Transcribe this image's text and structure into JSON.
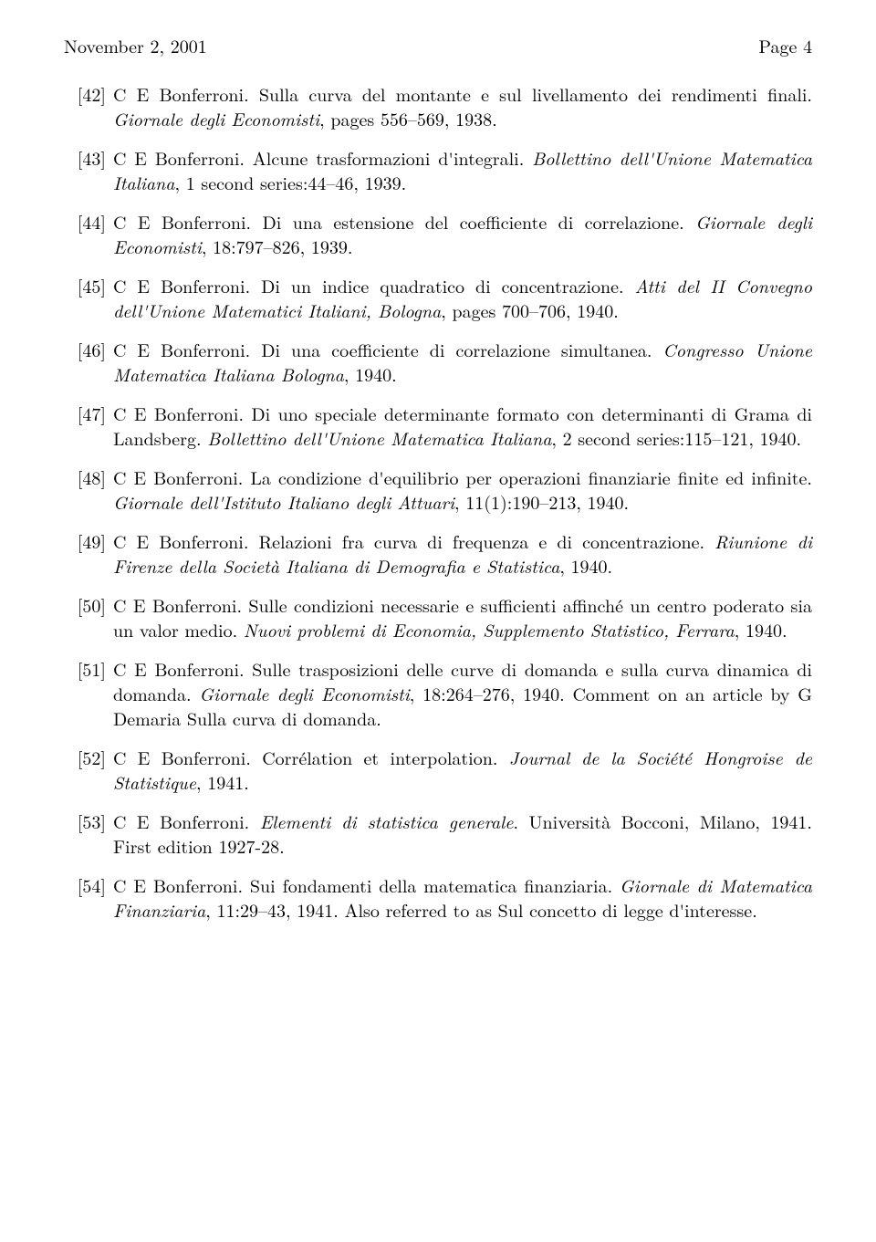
{
  "header": {
    "left": "November 2, 2001",
    "right": "Page 4"
  },
  "refs": [
    {
      "num": "42",
      "segments": [
        {
          "t": "C E Bonferroni. Sulla curva del montante e sul livellamento dei rendimenti finali. "
        },
        {
          "t": "Giornale degli Economisti",
          "i": true
        },
        {
          "t": ", pages 556–569, 1938."
        }
      ]
    },
    {
      "num": "43",
      "segments": [
        {
          "t": "C E Bonferroni. Alcune trasformazioni d'integrali. "
        },
        {
          "t": "Bollettino dell'Unione Matematica Italiana",
          "i": true
        },
        {
          "t": ", 1 second series:44–46, 1939."
        }
      ]
    },
    {
      "num": "44",
      "segments": [
        {
          "t": "C E Bonferroni. Di una estensione del coefficiente di correlazione. "
        },
        {
          "t": "Giornale degli Economisti",
          "i": true
        },
        {
          "t": ", 18:797–826, 1939."
        }
      ]
    },
    {
      "num": "45",
      "segments": [
        {
          "t": "C E Bonferroni. Di un indice quadratico di concentrazione. "
        },
        {
          "t": "Atti del II Convegno dell'Unione Matematici Italiani, Bologna",
          "i": true
        },
        {
          "t": ", pages 700–706, 1940."
        }
      ]
    },
    {
      "num": "46",
      "segments": [
        {
          "t": "C E Bonferroni. Di una coefficiente di correlazione simultanea. "
        },
        {
          "t": "Congresso Unione Matematica Italiana Bologna",
          "i": true
        },
        {
          "t": ", 1940."
        }
      ]
    },
    {
      "num": "47",
      "segments": [
        {
          "t": "C E Bonferroni. Di uno speciale determinante formato con determinanti di Grama di Landsberg. "
        },
        {
          "t": "Bollettino dell'Unione Matematica Italiana",
          "i": true
        },
        {
          "t": ", 2 second series:115–121, 1940."
        }
      ]
    },
    {
      "num": "48",
      "segments": [
        {
          "t": "C E Bonferroni. La condizione d'equilibrio per operazioni finanziarie finite ed infinite. "
        },
        {
          "t": "Giornale dell'Istituto Italiano degli Attuari",
          "i": true
        },
        {
          "t": ", 11(1):190–213, 1940."
        }
      ]
    },
    {
      "num": "49",
      "segments": [
        {
          "t": "C E Bonferroni. Relazioni fra curva di frequenza e di concentrazione. "
        },
        {
          "t": "Riunione di Firenze della Società Italiana di Demografia e Statistica",
          "i": true
        },
        {
          "t": ", 1940."
        }
      ]
    },
    {
      "num": "50",
      "segments": [
        {
          "t": "C E Bonferroni. Sulle condizioni necessarie e sufficienti affinché un centro poderato sia un valor medio. "
        },
        {
          "t": "Nuovi problemi di Economia, Supplemento Statistico, Ferrara",
          "i": true
        },
        {
          "t": ", 1940."
        }
      ]
    },
    {
      "num": "51",
      "segments": [
        {
          "t": "C E Bonferroni. Sulle trasposizioni delle curve di domanda e sulla curva dinamica di domanda. "
        },
        {
          "t": "Giornale degli Economisti",
          "i": true
        },
        {
          "t": ", 18:264–276, 1940. Comment on an article by G Demaria Sulla curva di domanda."
        }
      ]
    },
    {
      "num": "52",
      "segments": [
        {
          "t": "C E Bonferroni. Corrélation et interpolation. "
        },
        {
          "t": "Journal de la Société Hongroise de Statistique",
          "i": true
        },
        {
          "t": ", 1941."
        }
      ]
    },
    {
      "num": "53",
      "segments": [
        {
          "t": "C E Bonferroni. "
        },
        {
          "t": "Elementi di statistica generale",
          "i": true
        },
        {
          "t": ". Università Bocconi, Milano, 1941. First edition 1927-28."
        }
      ]
    },
    {
      "num": "54",
      "segments": [
        {
          "t": "C E Bonferroni. Sui fondamenti della matematica finanziaria. "
        },
        {
          "t": "Giornale di Matematica Finanziaria",
          "i": true
        },
        {
          "t": ", 11:29–43, 1941. Also referred to as Sul concetto di legge d'interesse."
        }
      ]
    }
  ]
}
